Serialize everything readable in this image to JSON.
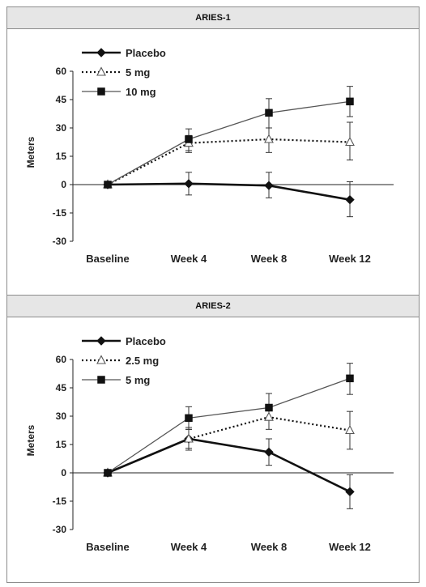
{
  "chart_data": [
    {
      "type": "line",
      "title": "ARIES-1",
      "ylabel": "Meters",
      "xlabel": "",
      "categories": [
        "Baseline",
        "Week 4",
        "Week 8",
        "Week 12"
      ],
      "yticks": [
        "60",
        "45",
        "30",
        "15",
        "0",
        "-15",
        "-30"
      ],
      "ylim": [
        -30,
        60
      ],
      "legend_position": "top-left",
      "series": [
        {
          "name": "Placebo",
          "values": [
            0,
            0.5,
            -0.5,
            -8
          ],
          "err_low": [
            0,
            -5.5,
            -7,
            -17
          ],
          "err_high": [
            0,
            6.5,
            6.5,
            1.5
          ],
          "marker": "diamond",
          "line": "solid-thick",
          "color": "#111111"
        },
        {
          "name": "5 mg",
          "values": [
            0,
            22,
            24,
            22.5
          ],
          "err_low": [
            0,
            17,
            17,
            13
          ],
          "err_high": [
            0,
            26,
            30,
            33
          ],
          "marker": "triangle-open",
          "line": "dotted",
          "color": "#111111"
        },
        {
          "name": "10 mg",
          "values": [
            0,
            24,
            38,
            44
          ],
          "err_low": [
            0,
            18,
            30,
            36
          ],
          "err_high": [
            0,
            29.5,
            45.5,
            52
          ],
          "marker": "square",
          "line": "solid-thin",
          "color": "#555555"
        }
      ]
    },
    {
      "type": "line",
      "title": "ARIES-2",
      "ylabel": "Meters",
      "xlabel": "",
      "categories": [
        "Baseline",
        "Week 4",
        "Week 8",
        "Week 12"
      ],
      "yticks": [
        "60",
        "45",
        "30",
        "15",
        "0",
        "-15",
        "-30"
      ],
      "ylim": [
        -30,
        60
      ],
      "legend_position": "top-left",
      "series": [
        {
          "name": "Placebo",
          "values": [
            0,
            18,
            11,
            -10
          ],
          "err_low": [
            0,
            12,
            4,
            -19
          ],
          "err_high": [
            0,
            24,
            18,
            -1
          ],
          "marker": "diamond",
          "line": "solid-thick",
          "color": "#111111"
        },
        {
          "name": "2.5 mg",
          "values": [
            0,
            18,
            29.5,
            22.5
          ],
          "err_low": [
            0,
            13,
            23,
            12.5
          ],
          "err_high": [
            0,
            23,
            36,
            32.5
          ],
          "marker": "triangle-open",
          "line": "dotted",
          "color": "#111111"
        },
        {
          "name": "5 mg",
          "values": [
            0,
            29,
            34.5,
            50
          ],
          "err_low": [
            0,
            23,
            28,
            41.5
          ],
          "err_high": [
            0,
            35,
            42,
            58
          ],
          "marker": "square",
          "line": "solid-thin",
          "color": "#555555"
        }
      ]
    }
  ]
}
